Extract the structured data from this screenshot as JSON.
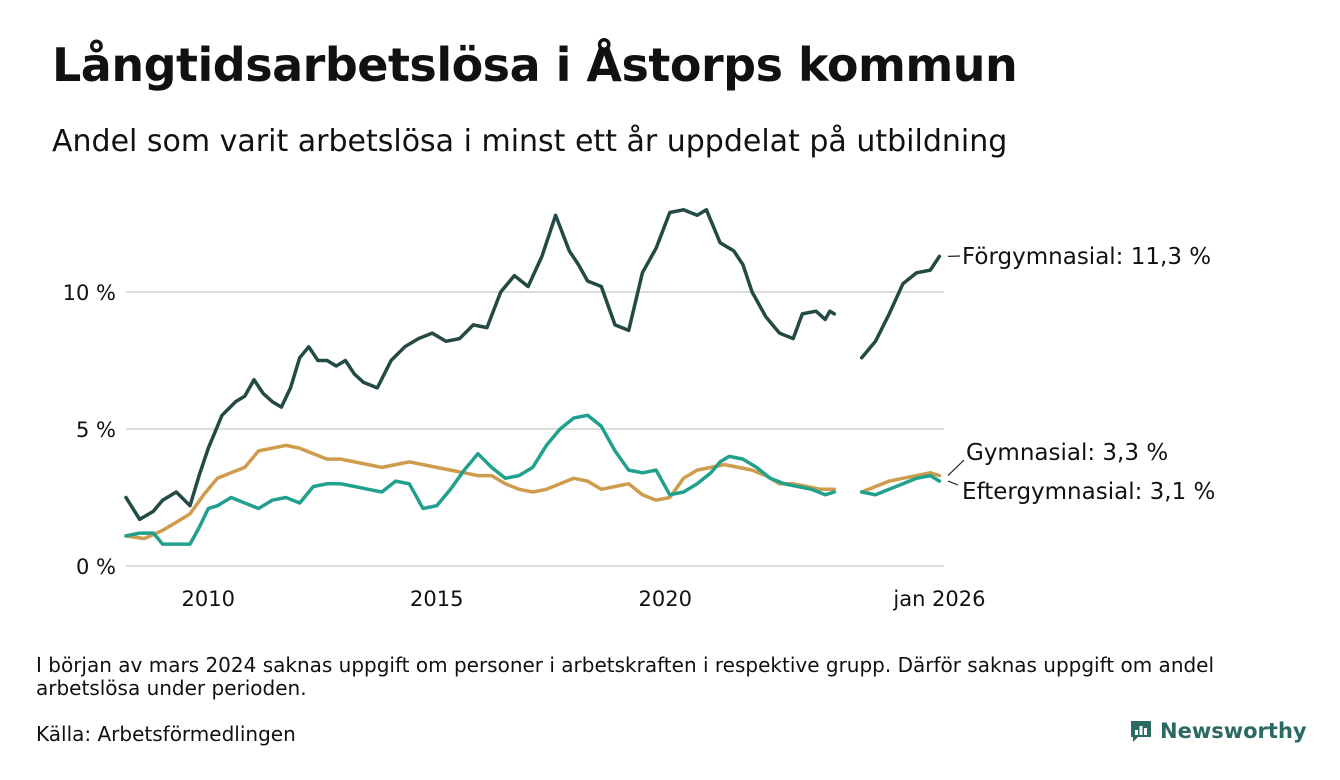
{
  "title": "Långtidsarbetslösa i Åstorps kommun",
  "subtitle": "Andel som varit arbetslösa i minst ett år uppdelat på utbildning",
  "note": "I början av mars 2024 saknas uppgift om personer i arbetskraften i respektive grupp. Därför saknas uppgift om andel arbetslösa under perioden.",
  "source": "Källa: Arbetsförmedlingen",
  "brand": {
    "name": "Newsworthy"
  },
  "chart_data": {
    "type": "line",
    "title": "Långtidsarbetslösa i Åstorps kommun",
    "xlabel": "",
    "ylabel": "",
    "xlim": [
      2008.2,
      2026.1
    ],
    "ylim": [
      0,
      12
    ],
    "grid": true,
    "y_ticks": [
      {
        "value": 0,
        "label": "0 %"
      },
      {
        "value": 5,
        "label": "5 %"
      },
      {
        "value": 10,
        "label": "10 %"
      }
    ],
    "x_ticks": [
      {
        "value": 2010,
        "label": "2010"
      },
      {
        "value": 2015,
        "label": "2015"
      },
      {
        "value": 2020,
        "label": "2020"
      },
      {
        "value": 2026.0,
        "label": "jan 2026"
      }
    ],
    "gap": [
      2023.75,
      2024.25
    ],
    "series": [
      {
        "name": "Förgymnasial",
        "color": "#234a44",
        "end_label": "Förgymnasial: 11,3 %",
        "x": [
          2008.2,
          2008.5,
          2008.8,
          2009.0,
          2009.3,
          2009.6,
          2009.8,
          2010.0,
          2010.3,
          2010.6,
          2010.8,
          2011.0,
          2011.2,
          2011.4,
          2011.6,
          2011.8,
          2012.0,
          2012.2,
          2012.4,
          2012.6,
          2012.8,
          2013.0,
          2013.2,
          2013.4,
          2013.7,
          2014.0,
          2014.3,
          2014.6,
          2014.9,
          2015.2,
          2015.5,
          2015.8,
          2016.1,
          2016.4,
          2016.7,
          2017.0,
          2017.3,
          2017.6,
          2017.9,
          2018.1,
          2018.3,
          2018.6,
          2018.9,
          2019.2,
          2019.5,
          2019.8,
          2020.1,
          2020.4,
          2020.7,
          2020.9,
          2021.2,
          2021.5,
          2021.7,
          2021.9,
          2022.2,
          2022.5,
          2022.8,
          2023.0,
          2023.3,
          2023.5,
          2023.6,
          2023.7,
          2024.3,
          2024.6,
          2024.9,
          2025.2,
          2025.5,
          2025.8,
          2026.0
        ],
        "values": [
          2.5,
          1.7,
          2.0,
          2.4,
          2.7,
          2.2,
          3.3,
          4.3,
          5.5,
          6.0,
          6.2,
          6.8,
          6.3,
          6.0,
          5.8,
          6.5,
          7.6,
          8.0,
          7.5,
          7.5,
          7.3,
          7.5,
          7.0,
          6.7,
          6.5,
          7.5,
          8.0,
          8.3,
          8.5,
          8.2,
          8.3,
          8.8,
          8.7,
          10.0,
          10.6,
          10.2,
          11.3,
          12.8,
          11.5,
          11.0,
          10.4,
          10.2,
          8.8,
          8.6,
          10.7,
          11.6,
          12.9,
          13.0,
          12.8,
          13.0,
          11.8,
          11.5,
          11.0,
          10.0,
          9.1,
          8.5,
          8.3,
          9.2,
          9.3,
          9.0,
          9.3,
          9.2,
          7.6,
          8.2,
          9.2,
          10.3,
          10.7,
          10.8,
          11.3
        ]
      },
      {
        "name": "Gymnasial",
        "color": "#cf9c4d",
        "end_label": "Gymnasial:  3,3 %",
        "x": [
          2008.2,
          2008.6,
          2009.0,
          2009.3,
          2009.6,
          2009.9,
          2010.2,
          2010.5,
          2010.8,
          2011.1,
          2011.4,
          2011.7,
          2012.0,
          2012.3,
          2012.6,
          2012.9,
          2013.2,
          2013.5,
          2013.8,
          2014.1,
          2014.4,
          2014.7,
          2015.0,
          2015.3,
          2015.6,
          2015.9,
          2016.2,
          2016.5,
          2016.8,
          2017.1,
          2017.4,
          2017.7,
          2018.0,
          2018.3,
          2018.6,
          2018.9,
          2019.2,
          2019.5,
          2019.8,
          2020.1,
          2020.4,
          2020.7,
          2021.0,
          2021.3,
          2021.6,
          2021.9,
          2022.2,
          2022.5,
          2022.8,
          2023.1,
          2023.4,
          2023.7,
          2024.3,
          2024.6,
          2024.9,
          2025.2,
          2025.5,
          2025.8,
          2026.0
        ],
        "values": [
          1.1,
          1.0,
          1.3,
          1.6,
          1.9,
          2.6,
          3.2,
          3.4,
          3.6,
          4.2,
          4.3,
          4.4,
          4.3,
          4.1,
          3.9,
          3.9,
          3.8,
          3.7,
          3.6,
          3.7,
          3.8,
          3.7,
          3.6,
          3.5,
          3.4,
          3.3,
          3.3,
          3.0,
          2.8,
          2.7,
          2.8,
          3.0,
          3.2,
          3.1,
          2.8,
          2.9,
          3.0,
          2.6,
          2.4,
          2.5,
          3.2,
          3.5,
          3.6,
          3.7,
          3.6,
          3.5,
          3.3,
          3.0,
          3.0,
          2.9,
          2.8,
          2.8,
          2.7,
          2.9,
          3.1,
          3.2,
          3.3,
          3.4,
          3.3
        ]
      },
      {
        "name": "Eftergymnasial",
        "color": "#22a08e",
        "end_label": "Eftergymnasial:  3,1 %",
        "x": [
          2008.2,
          2008.5,
          2008.8,
          2009.0,
          2009.3,
          2009.6,
          2009.8,
          2010.0,
          2010.2,
          2010.5,
          2010.8,
          2011.1,
          2011.4,
          2011.7,
          2012.0,
          2012.3,
          2012.6,
          2012.9,
          2013.2,
          2013.5,
          2013.8,
          2014.1,
          2014.4,
          2014.7,
          2015.0,
          2015.3,
          2015.6,
          2015.9,
          2016.2,
          2016.5,
          2016.8,
          2017.1,
          2017.4,
          2017.7,
          2018.0,
          2018.3,
          2018.6,
          2018.9,
          2019.2,
          2019.5,
          2019.8,
          2020.1,
          2020.4,
          2020.7,
          2021.0,
          2021.2,
          2021.4,
          2021.7,
          2022.0,
          2022.3,
          2022.6,
          2022.9,
          2023.2,
          2023.5,
          2023.7,
          2024.3,
          2024.6,
          2024.9,
          2025.2,
          2025.5,
          2025.8,
          2026.0
        ],
        "values": [
          1.1,
          1.2,
          1.2,
          0.8,
          0.8,
          0.8,
          1.4,
          2.1,
          2.2,
          2.5,
          2.3,
          2.1,
          2.4,
          2.5,
          2.3,
          2.9,
          3.0,
          3.0,
          2.9,
          2.8,
          2.7,
          3.1,
          3.0,
          2.1,
          2.2,
          2.8,
          3.5,
          4.1,
          3.6,
          3.2,
          3.3,
          3.6,
          4.4,
          5.0,
          5.4,
          5.5,
          5.1,
          4.2,
          3.5,
          3.4,
          3.5,
          2.6,
          2.7,
          3.0,
          3.4,
          3.8,
          4.0,
          3.9,
          3.6,
          3.2,
          3.0,
          2.9,
          2.8,
          2.6,
          2.7,
          2.7,
          2.6,
          2.8,
          3.0,
          3.2,
          3.3,
          3.1
        ]
      }
    ]
  }
}
